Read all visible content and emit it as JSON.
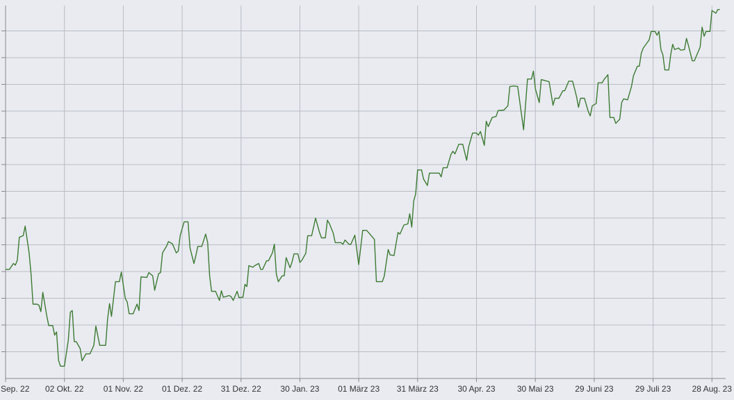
{
  "chart_data": {
    "type": "line",
    "x": [
      0,
      2,
      4,
      5,
      6,
      7,
      9,
      10,
      12,
      13,
      14,
      16,
      17,
      18,
      19,
      21,
      22,
      24,
      25,
      26,
      27,
      28,
      30,
      32,
      33,
      34,
      35,
      36,
      38,
      39,
      41,
      43,
      45,
      46,
      48,
      51,
      52,
      53,
      54,
      56,
      58,
      59,
      61,
      62,
      63,
      65,
      67,
      68,
      69,
      72,
      73,
      75,
      76,
      78,
      79,
      80,
      82,
      83,
      85,
      87,
      88,
      89,
      91,
      93,
      94,
      96,
      97,
      98,
      100,
      102,
      103,
      104,
      105,
      107,
      109,
      110,
      111,
      114,
      115,
      116,
      118,
      119,
      121,
      122,
      123,
      124,
      126,
      127,
      129,
      130,
      131,
      133,
      134,
      136,
      137,
      138,
      139,
      141,
      142,
      143,
      145,
      146,
      147,
      149,
      150,
      151,
      153,
      154,
      156,
      158,
      160,
      161,
      163,
      164,
      165,
      167,
      168,
      171,
      172,
      173,
      175,
      176,
      178,
      180,
      182,
      184,
      185,
      188,
      189,
      192,
      193,
      195,
      196,
      198,
      200,
      201,
      203,
      205,
      206,
      207,
      208,
      209,
      210,
      212,
      213,
      215,
      216,
      221,
      222,
      223,
      225,
      227,
      228,
      229,
      231,
      233,
      235,
      236,
      238,
      240,
      241,
      242,
      244,
      245,
      246,
      248,
      250,
      251,
      254,
      256,
      257,
      259,
      261,
      264,
      266,
      268,
      269,
      270,
      272,
      273,
      277,
      279,
      280,
      282,
      284,
      285,
      287,
      289,
      291,
      292,
      293,
      295,
      297,
      298,
      299,
      301,
      302,
      304,
      305,
      307,
      308,
      310,
      311,
      313,
      314,
      315,
      317,
      319,
      320,
      322,
      323,
      324,
      325,
      327,
      328,
      329,
      331,
      332,
      333,
      334,
      335,
      336,
      338,
      339,
      340,
      341,
      343,
      344,
      346,
      347,
      348,
      350,
      351,
      353,
      354,
      355,
      356,
      357,
      359,
      360,
      362,
      363,
      364
    ],
    "series": [
      {
        "color": "#3d7a32",
        "values": [
          20.4,
          20.4,
          21.5,
          21.2,
          22.1,
          26.4,
          26.7,
          28.5,
          23.5,
          19.5,
          13.9,
          13.9,
          13.7,
          12.5,
          16.1,
          11.7,
          9.9,
          9.9,
          8.1,
          8.7,
          3.4,
          2.3,
          2.3,
          7.2,
          12.4,
          12.7,
          6.9,
          6.9,
          5.6,
          3.3,
          4.6,
          4.6,
          6.2,
          9.8,
          6.2,
          6.2,
          11.1,
          14.0,
          11.6,
          18.1,
          18.1,
          19.9,
          15.0,
          14.3,
          12.1,
          12.1,
          13.9,
          12.7,
          19.0,
          18.9,
          19.8,
          19.2,
          16.5,
          19.6,
          19.8,
          23.5,
          24.7,
          25.6,
          25.2,
          23.5,
          23.8,
          26.7,
          29.3,
          29.3,
          24.4,
          21.5,
          23.0,
          24.7,
          24.7,
          27.0,
          25.4,
          19.2,
          16.3,
          16.3,
          14.6,
          16.4,
          15.2,
          15.5,
          15.3,
          14.6,
          16.3,
          15.1,
          15.2,
          17.6,
          17.2,
          21.1,
          20.8,
          21.1,
          21.5,
          20.4,
          20.4,
          22.0,
          22.0,
          23.5,
          25.1,
          19.5,
          18.1,
          19.2,
          19.2,
          22.6,
          20.7,
          21.8,
          23.3,
          23.3,
          21.7,
          22.1,
          23.4,
          26.7,
          26.7,
          30.0,
          27.3,
          26.3,
          26.3,
          29.6,
          29.0,
          27.2,
          25.4,
          25.4,
          25.1,
          25.9,
          25.1,
          25.1,
          26.8,
          21.3,
          27.7,
          27.7,
          27.3,
          26.0,
          18.1,
          18.1,
          19.1,
          24.1,
          23.1,
          23.0,
          27.3,
          27.0,
          28.7,
          28.9,
          30.8,
          28.3,
          33.2,
          34.5,
          39.0,
          39.0,
          37.3,
          36.1,
          38.4,
          38.4,
          37.7,
          39.4,
          39.4,
          41.9,
          42.5,
          42.0,
          43.8,
          43.8,
          40.8,
          43.3,
          45.9,
          45.9,
          45.5,
          46.2,
          43.6,
          48.1,
          47.1,
          48.8,
          49.0,
          50.1,
          50.2,
          51.0,
          54.6,
          54.7,
          54.6,
          46.5,
          56.0,
          56.0,
          57.5,
          54.2,
          51.6,
          55.9,
          55.5,
          51.1,
          52.4,
          52.4,
          53.8,
          53.8,
          55.6,
          55.6,
          52.7,
          50.7,
          52.4,
          52.4,
          49.9,
          49.1,
          51.0,
          51.4,
          55.3,
          55.3,
          55.9,
          56.8,
          48.8,
          48.8,
          47.7,
          48.5,
          51.6,
          52.3,
          52.1,
          54.6,
          56.6,
          58.4,
          58.4,
          60.8,
          61.8,
          62.8,
          63.3,
          64.9,
          64.9,
          64.2,
          64.9,
          61.5,
          60.5,
          57.7,
          57.7,
          60.6,
          62.5,
          61.5,
          61.8,
          61.4,
          61.5,
          63.6,
          62.3,
          59.4,
          59.4,
          61.1,
          62.0,
          65.7,
          64.0,
          64.9,
          64.9,
          68.8,
          68.3,
          69.0,
          69.0
        ]
      }
    ],
    "xlim": [
      0,
      366
    ],
    "xticks": [
      {
        "value": 0,
        "label": "Sep. 22"
      },
      {
        "value": 30,
        "label": "02 Okt. 22"
      },
      {
        "value": 60,
        "label": "01 Nov. 22"
      },
      {
        "value": 90,
        "label": "01 Dez. 22"
      },
      {
        "value": 120,
        "label": "31 Dez. 22"
      },
      {
        "value": 150,
        "label": "30 Jan. 23"
      },
      {
        "value": 180,
        "label": "01 März 23"
      },
      {
        "value": 210,
        "label": "31 März 23"
      },
      {
        "value": 240,
        "label": "30 Apr. 23"
      },
      {
        "value": 270,
        "label": "30 Mai 23"
      },
      {
        "value": 300,
        "label": "29 Juni 23"
      },
      {
        "value": 330,
        "label": "29 Juli 23"
      },
      {
        "value": 360,
        "label": "28 Aug. 23"
      }
    ],
    "ylim": [
      0,
      70
    ],
    "yticks": [
      5,
      10,
      15,
      20,
      25,
      30,
      35,
      40,
      45,
      50,
      55,
      60,
      65
    ],
    "grid": true
  }
}
